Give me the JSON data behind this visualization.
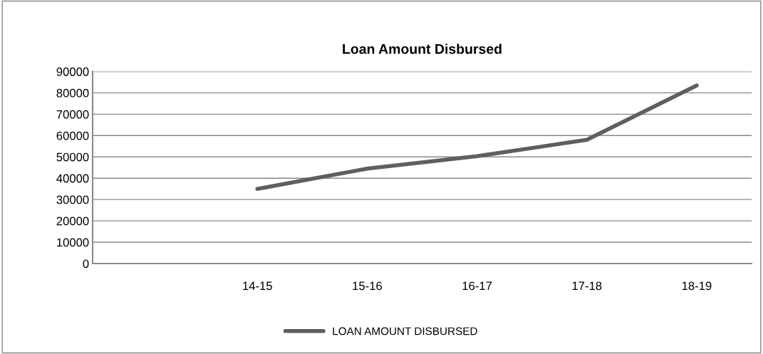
{
  "chart_data": {
    "type": "line",
    "title": "Loan Amount Disbursed",
    "categories": [
      null,
      "14-15",
      "15-16",
      "16-17",
      "17-18",
      "18-19"
    ],
    "series": [
      {
        "name": "LOAN AMOUNT DISBURSED",
        "color": "#5f5f5f",
        "values": [
          null,
          35000,
          44500,
          50300,
          58000,
          83500
        ]
      }
    ],
    "ylim": [
      0,
      90000
    ],
    "yticks": [
      0,
      10000,
      20000,
      30000,
      40000,
      50000,
      60000,
      70000,
      80000,
      90000
    ],
    "grid": "y",
    "legend": "bottom",
    "marker": "none",
    "line_style": "solid"
  }
}
